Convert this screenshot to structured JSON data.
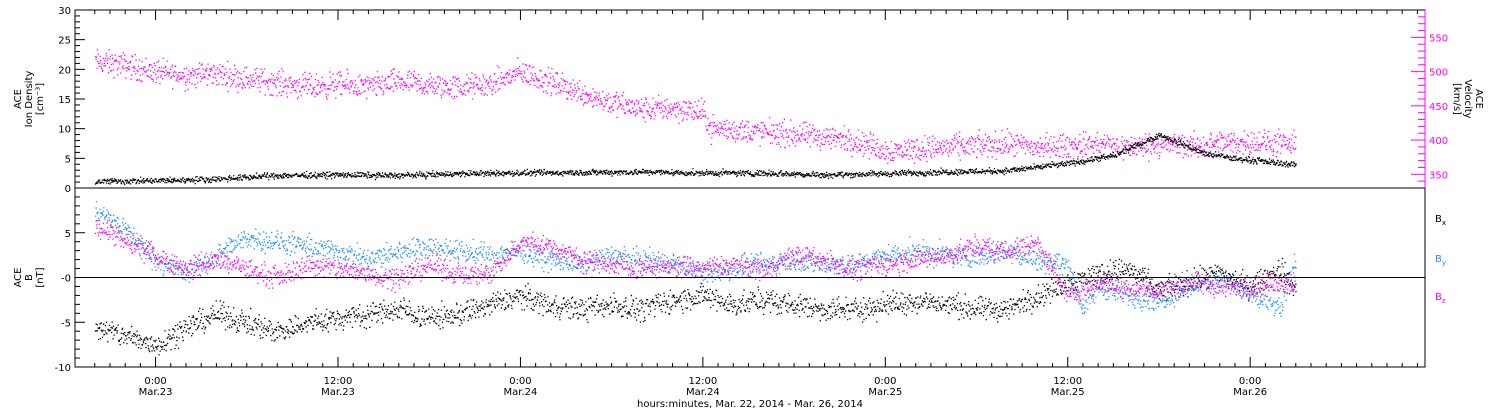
{
  "chart_data": [
    {
      "type": "scatter",
      "panel": "top",
      "left_axis": {
        "title_lines": [
          "ACE",
          "Ion Density",
          "[cm⁻³]"
        ],
        "ylim": [
          0,
          30
        ],
        "ticks": [
          "0",
          "5",
          "10",
          "15",
          "20",
          "25",
          "30"
        ]
      },
      "right_axis": {
        "title_lines": [
          "ACE",
          "Velocity",
          "[km/s]"
        ],
        "ylim": [
          330,
          590
        ],
        "ticks": [
          "350",
          "400",
          "450",
          "500",
          "550"
        ],
        "color": "#ff00ff"
      },
      "series": [
        {
          "axis": "left",
          "color": "#000000",
          "x": [
            -4,
            0,
            4,
            8,
            12,
            16,
            20,
            24,
            28,
            32,
            36,
            40,
            44,
            48,
            52,
            56,
            60,
            63,
            66,
            68,
            69,
            70,
            71,
            72,
            75
          ],
          "y": [
            1.2,
            1.3,
            1.6,
            2.2,
            2.3,
            2.2,
            2.5,
            2.6,
            2.7,
            2.8,
            2.6,
            2.6,
            2.3,
            2.5,
            2.8,
            3.0,
            4.2,
            5.5,
            9.0,
            7.0,
            5.8,
            5.5,
            5.0,
            4.8,
            4.0
          ]
        },
        {
          "axis": "right",
          "color": "#ff00ff",
          "x": [
            -4,
            -2,
            0,
            2,
            4,
            6,
            8,
            10,
            12,
            14,
            16,
            18,
            20,
            22,
            24,
            26,
            28,
            30,
            32,
            34,
            36,
            36.5,
            40,
            44,
            46,
            48,
            50,
            52,
            54,
            56,
            58,
            60,
            62,
            64,
            66,
            68,
            70,
            72,
            74,
            75
          ],
          "y": [
            515,
            510,
            500,
            495,
            498,
            490,
            485,
            478,
            482,
            478,
            486,
            480,
            478,
            482,
            500,
            485,
            470,
            455,
            445,
            448,
            440,
            418,
            412,
            405,
            400,
            385,
            388,
            390,
            392,
            395,
            390,
            392,
            395,
            390,
            395,
            392,
            395,
            398,
            395,
            392
          ]
        }
      ]
    },
    {
      "type": "scatter",
      "panel": "bottom",
      "left_axis": {
        "title_lines": [
          "ACE",
          "B",
          "[nT]"
        ],
        "ylim": [
          -10,
          10
        ],
        "ticks": [
          "-10",
          "-5",
          "-0",
          "5"
        ]
      },
      "legend": [
        "Bx",
        "By",
        "Bz"
      ],
      "series": [
        {
          "name": "Bx",
          "color": "#000000",
          "x": [
            -4,
            -2,
            0,
            2,
            4,
            6,
            8,
            10,
            12,
            14,
            16,
            18,
            20,
            22,
            24,
            26,
            28,
            30,
            32,
            34,
            36,
            38,
            40,
            42,
            44,
            46,
            48,
            50,
            52,
            54,
            56,
            58,
            60,
            62,
            64,
            66,
            68,
            70,
            72,
            74,
            75
          ],
          "y": [
            -5.5,
            -6.5,
            -7.5,
            -5.5,
            -4.0,
            -5.0,
            -6.0,
            -5.0,
            -4.5,
            -4.0,
            -3.5,
            -4.5,
            -4.0,
            -3.0,
            -2.0,
            -3.0,
            -3.5,
            -3.0,
            -3.5,
            -2.5,
            -2.0,
            -3.0,
            -2.5,
            -3.0,
            -3.5,
            -3.5,
            -3.0,
            -2.5,
            -3.0,
            -3.5,
            -3.5,
            -2.0,
            -0.5,
            0.5,
            1.0,
            -1.5,
            -0.5,
            0.5,
            -1.0,
            1.0,
            -1.5
          ]
        },
        {
          "name": "By",
          "color": "#1e90ff",
          "x": [
            -4,
            -2,
            0,
            2,
            4,
            6,
            8,
            10,
            12,
            14,
            16,
            18,
            20,
            22,
            24,
            26,
            28,
            30,
            32,
            34,
            36,
            38,
            40,
            42,
            44,
            46,
            48,
            50,
            52,
            54,
            56,
            58,
            60,
            61,
            62,
            64,
            66,
            68,
            70,
            72,
            74,
            75
          ],
          "y": [
            7.5,
            5.5,
            2.0,
            0.5,
            2.5,
            4.5,
            4.0,
            3.5,
            3.0,
            2.0,
            3.0,
            3.5,
            3.0,
            2.5,
            3.0,
            2.0,
            1.5,
            2.5,
            2.0,
            1.5,
            0.5,
            1.0,
            1.5,
            2.0,
            1.5,
            1.5,
            2.5,
            3.0,
            2.5,
            2.5,
            3.0,
            2.0,
            1.5,
            -3.5,
            -1.0,
            -2.0,
            -2.5,
            -1.0,
            0.0,
            -2.0,
            -3.5,
            2.0
          ]
        },
        {
          "name": "Bz",
          "color": "#ff00ff",
          "x": [
            -4,
            -2,
            0,
            2,
            4,
            6,
            8,
            10,
            12,
            14,
            16,
            18,
            20,
            22,
            24,
            26,
            28,
            30,
            32,
            34,
            36,
            38,
            40,
            42,
            44,
            46,
            48,
            50,
            52,
            54,
            56,
            58,
            60,
            62,
            64,
            66,
            68,
            70,
            72,
            74,
            75
          ],
          "y": [
            6.0,
            4.0,
            2.5,
            1.0,
            2.0,
            1.0,
            0.0,
            1.5,
            1.0,
            0.5,
            0.0,
            1.5,
            0.5,
            0.5,
            4.0,
            3.5,
            2.0,
            1.5,
            1.0,
            1.5,
            1.0,
            1.5,
            1.0,
            2.5,
            2.0,
            1.0,
            1.5,
            2.0,
            2.5,
            3.5,
            3.0,
            4.0,
            -2.0,
            -0.5,
            -1.0,
            -1.5,
            -0.5,
            -1.0,
            -1.0,
            -0.5,
            -0.5
          ]
        }
      ]
    }
  ],
  "x_axis": {
    "unit": "hours since 00:00 Mar.23, 2014",
    "xlim": [
      -5.3,
      83.5
    ],
    "ticks": [
      {
        "x": 0,
        "time": "0:00",
        "date": "Mar.23"
      },
      {
        "x": 12,
        "time": "12:00",
        "date": "Mar.23"
      },
      {
        "x": 24,
        "time": "0:00",
        "date": "Mar.24"
      },
      {
        "x": 36,
        "time": "12:00",
        "date": "Mar.24"
      },
      {
        "x": 48,
        "time": "0:00",
        "date": "Mar.25"
      },
      {
        "x": 60,
        "time": "12:00",
        "date": "Mar.25"
      },
      {
        "x": 72,
        "time": "0:00",
        "date": "Mar.26"
      }
    ],
    "title": "hours:minutes, Mar. 22, 2014 - Mar. 26, 2014"
  }
}
